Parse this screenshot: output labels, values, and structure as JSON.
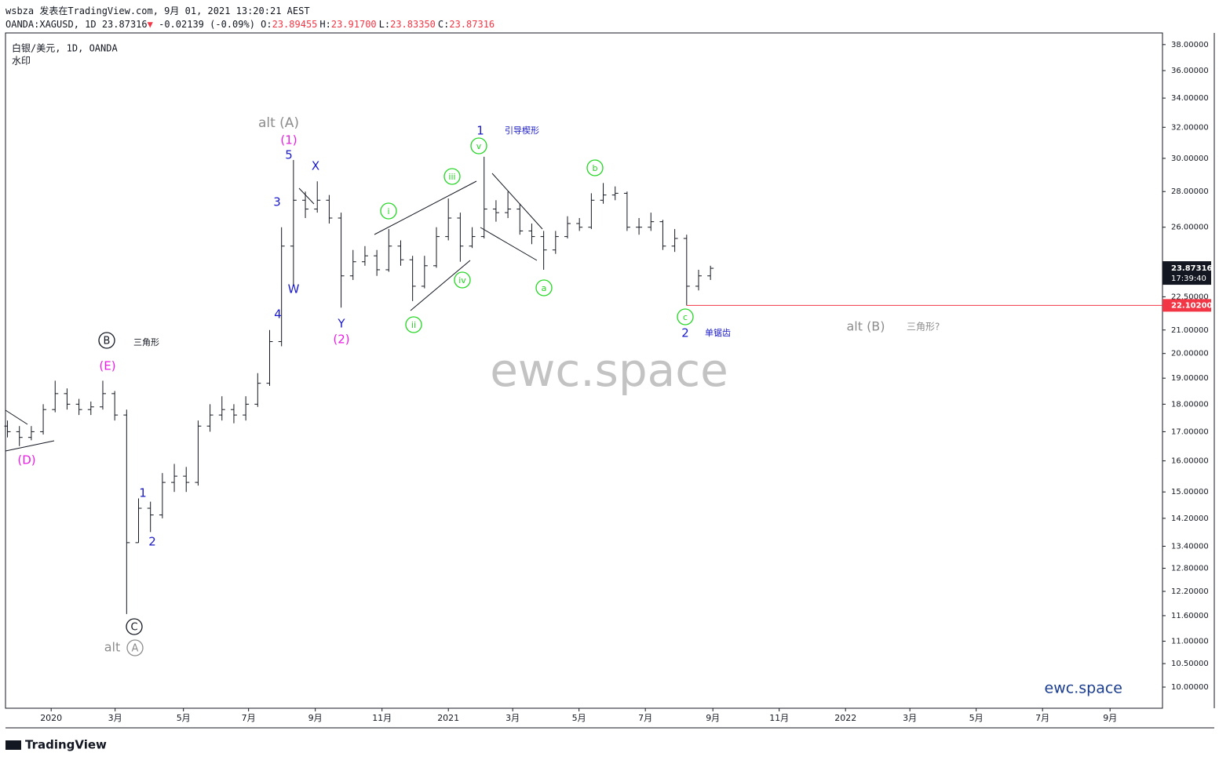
{
  "header": {
    "line1": "wsbza 发表在TradingView.com, 9月 01, 2021 13:20:21 AEST",
    "symbol": "OANDA:XAGUSD, 1D 23.87316",
    "change_arrow": "▼",
    "change": "-0.02139 (-0.09%)",
    "ohlc": [
      {
        "label": "O:",
        "value": "23.89455"
      },
      {
        "label": "H:",
        "value": "23.91700"
      },
      {
        "label": "L:",
        "value": "23.83350"
      },
      {
        "label": "C:",
        "value": "23.87316"
      }
    ]
  },
  "footer": {
    "brand": "TradingView"
  },
  "chart_data": {
    "type": "ohlc",
    "legend_title": "白银/美元, 1D, OANDA",
    "legend_subtitle": "水印",
    "watermark": "ewc.space",
    "brand_mark": "ewc.space",
    "color": "#131722",
    "log_scale": true,
    "x": [
      2019.89,
      2019.92,
      2019.95,
      2019.98,
      2020.01,
      2020.04,
      2020.07,
      2020.1,
      2020.13,
      2020.16,
      2020.19,
      2020.22,
      2020.25,
      2020.28,
      2020.31,
      2020.34,
      2020.37,
      2020.4,
      2020.43,
      2020.46,
      2020.49,
      2020.52,
      2020.55,
      2020.58,
      2020.61,
      2020.64,
      2020.67,
      2020.7,
      2020.73,
      2020.76,
      2020.79,
      2020.82,
      2020.85,
      2020.88,
      2020.91,
      2020.94,
      2020.97,
      2021,
      2021.03,
      2021.06,
      2021.09,
      2021.12,
      2021.15,
      2021.18,
      2021.21,
      2021.24,
      2021.27,
      2021.3,
      2021.33,
      2021.36,
      2021.39,
      2021.42,
      2021.45,
      2021.48,
      2021.51,
      2021.54,
      2021.57,
      2021.6,
      2021.63,
      2021.66
    ],
    "open": [
      17.2,
      17.0,
      16.8,
      17.0,
      17.8,
      18.4,
      18.0,
      17.8,
      17.9,
      18.4,
      17.6,
      13.5,
      14.5,
      14.3,
      15.3,
      15.5,
      15.3,
      17.2,
      17.6,
      17.8,
      17.6,
      18.0,
      18.8,
      20.5,
      25.0,
      27.5,
      27.0,
      27.5,
      26.5,
      23.5,
      24.2,
      24.5,
      23.8,
      25.0,
      24.3,
      23.0,
      24.0,
      25.5,
      26.5,
      25.0,
      25.5,
      27.0,
      26.8,
      27.0,
      25.8,
      25.5,
      24.8,
      25.5,
      26.2,
      26.0,
      27.5,
      27.8,
      27.9,
      26.0,
      26.0,
      26.3,
      25.0,
      25.4,
      23.0,
      23.5
    ],
    "high": [
      17.4,
      17.2,
      17.2,
      18.0,
      18.9,
      18.6,
      18.2,
      18.1,
      18.9,
      18.5,
      17.8,
      14.8,
      14.7,
      15.6,
      15.9,
      15.8,
      17.4,
      18.0,
      18.3,
      18.0,
      18.3,
      19.2,
      21.0,
      26.0,
      29.9,
      28.0,
      28.6,
      27.8,
      26.8,
      24.8,
      25.0,
      24.8,
      25.9,
      25.3,
      24.5,
      24.5,
      26.0,
      27.6,
      26.8,
      26.0,
      30.1,
      27.5,
      28.0,
      27.3,
      26.2,
      25.8,
      25.8,
      26.6,
      26.5,
      27.9,
      28.5,
      28.3,
      28.0,
      26.5,
      26.8,
      26.4,
      25.9,
      25.6,
      23.8,
      24.0
    ],
    "low": [
      16.8,
      16.5,
      16.7,
      16.9,
      17.7,
      17.8,
      17.6,
      17.6,
      17.8,
      17.4,
      11.64,
      13.5,
      13.8,
      14.2,
      15.0,
      15.0,
      15.2,
      17.0,
      17.4,
      17.3,
      17.4,
      17.9,
      18.7,
      20.3,
      23.0,
      26.5,
      26.8,
      26.2,
      22.0,
      23.3,
      24.0,
      23.5,
      23.7,
      24.0,
      22.3,
      22.9,
      23.9,
      25.3,
      24.2,
      24.9,
      25.4,
      26.3,
      26.5,
      25.6,
      25.1,
      23.8,
      24.6,
      25.4,
      25.8,
      25.9,
      27.3,
      27.5,
      25.8,
      25.6,
      25.8,
      24.8,
      24.7,
      22.1,
      22.8,
      23.3
    ],
    "close": [
      17.0,
      16.8,
      17.0,
      17.8,
      18.4,
      18.0,
      17.8,
      17.9,
      18.4,
      17.6,
      13.5,
      14.5,
      14.3,
      15.3,
      15.5,
      15.3,
      17.2,
      17.6,
      17.8,
      17.6,
      18.0,
      18.8,
      20.5,
      25.0,
      27.5,
      27.0,
      27.5,
      26.5,
      23.5,
      24.2,
      24.5,
      23.8,
      25.0,
      24.3,
      23.0,
      24.0,
      25.5,
      26.5,
      25.0,
      25.5,
      27.0,
      26.8,
      27.0,
      25.8,
      25.5,
      24.8,
      25.5,
      26.2,
      26.0,
      27.5,
      27.8,
      27.9,
      26.0,
      26.0,
      26.3,
      25.0,
      25.4,
      23.0,
      23.5,
      23.87316
    ],
    "xlim": [
      2019.885,
      2022.798
    ],
    "ylim": [
      9.57,
      38.93
    ],
    "xticks": [
      2020,
      {
        "value": 2020.161,
        "label": "3月"
      },
      {
        "value": 2020.333,
        "label": "5月"
      },
      {
        "value": 2020.497,
        "label": "7月"
      },
      {
        "value": 2020.665,
        "label": "9月"
      },
      {
        "value": 2020.833,
        "label": "11月"
      },
      2021,
      {
        "value": 2021.162,
        "label": "3月"
      },
      {
        "value": 2021.329,
        "label": "5月"
      },
      {
        "value": 2021.496,
        "label": "7月"
      },
      {
        "value": 2021.666,
        "label": "9月"
      },
      {
        "value": 2021.833,
        "label": "11月"
      },
      2022,
      {
        "value": 2022.162,
        "label": "3月"
      },
      {
        "value": 2022.329,
        "label": "5月"
      },
      {
        "value": 2022.496,
        "label": "7月"
      },
      {
        "value": 2022.666,
        "label": "9月"
      }
    ],
    "yticks": [
      {
        "value": 38,
        "label": "38.00000"
      },
      {
        "value": 36,
        "label": "36.00000"
      },
      {
        "value": 34,
        "label": "34.00000"
      },
      {
        "value": 32,
        "label": "32.00000"
      },
      {
        "value": 30,
        "label": "30.00000"
      },
      {
        "value": 28,
        "label": "28.00000"
      },
      {
        "value": 26,
        "label": "26.00000"
      },
      {
        "value": 22.5,
        "label": "22.50000"
      },
      {
        "value": 21,
        "label": "21.00000"
      },
      {
        "value": 20,
        "label": "20.00000"
      },
      {
        "value": 19,
        "label": "19.00000"
      },
      {
        "value": 18,
        "label": "18.00000"
      },
      {
        "value": 17,
        "label": "17.00000"
      },
      {
        "value": 16,
        "label": "16.00000"
      },
      {
        "value": 15,
        "label": "15.00000"
      },
      {
        "value": 14.2,
        "label": "14.20000"
      },
      {
        "value": 13.4,
        "label": "13.40000"
      },
      {
        "value": 12.8,
        "label": "12.80000"
      },
      {
        "value": 12.2,
        "label": "12.20000"
      },
      {
        "value": 11.6,
        "label": "11.60000"
      },
      {
        "value": 11,
        "label": "11.00000"
      },
      {
        "value": 10.5,
        "label": "10.50000"
      },
      {
        "value": 10,
        "label": "10.00000"
      }
    ],
    "hline": {
      "value": 22.102,
      "label": "22.10200",
      "color": "#f23645"
    },
    "last_price_color": "#131722",
    "countdown": "17:39:40",
    "annotations": [
      {
        "text": "alt (A)",
        "color": "#8c8c8c"
      },
      {
        "text": "(1)",
        "color": "#e91ee3"
      },
      {
        "text": "5",
        "color": "#1a1acb"
      },
      {
        "text": "X",
        "color": "#1a1acb"
      },
      {
        "text": "3",
        "color": "#1a1acb"
      },
      {
        "text": "W",
        "color": "#1a1acb"
      },
      {
        "text": "4",
        "color": "#1a1acb"
      },
      {
        "text": "Y",
        "color": "#1a1acb"
      },
      {
        "text": "(2)",
        "color": "#e91ee3"
      },
      {
        "text": "i",
        "color": "#22d622",
        "circle": true
      },
      {
        "text": "ii",
        "color": "#22d622",
        "circle": true
      },
      {
        "text": "iii",
        "color": "#22d622",
        "circle": true
      },
      {
        "text": "iv",
        "color": "#22d622",
        "circle": true
      },
      {
        "text": "v",
        "color": "#22d622",
        "circle": true
      },
      {
        "text": "1",
        "color": "#1a1acb"
      },
      {
        "text": "引导楔形",
        "color": "#1a1acb"
      },
      {
        "text": "a",
        "color": "#22d622",
        "circle": true
      },
      {
        "text": "b",
        "color": "#22d622",
        "circle": true
      },
      {
        "text": "c",
        "color": "#22d622",
        "circle": true
      },
      {
        "text": "2",
        "color": "#1a1acb"
      },
      {
        "text": "单锯齿",
        "color": "#1a1acb"
      },
      {
        "text": "alt (B)",
        "color": "#8c8c8c"
      },
      {
        "text": "三角形?",
        "color": "#8c8c8c"
      },
      {
        "text": "B",
        "color": "#131722",
        "circle": true
      },
      {
        "text": "三角形",
        "color": "#131722"
      },
      {
        "text": "(E)",
        "color": "#e91ee3"
      },
      {
        "text": "(D)",
        "color": "#e91ee3"
      },
      {
        "text": "1",
        "color": "#1a1acb"
      },
      {
        "text": "2",
        "color": "#1a1acb"
      },
      {
        "text": "C",
        "color": "#131722",
        "circle": true
      },
      {
        "text": "alt",
        "color": "#8c8c8c"
      },
      {
        "text": "A",
        "color": "#8c8c8c",
        "circle": true
      }
    ]
  }
}
